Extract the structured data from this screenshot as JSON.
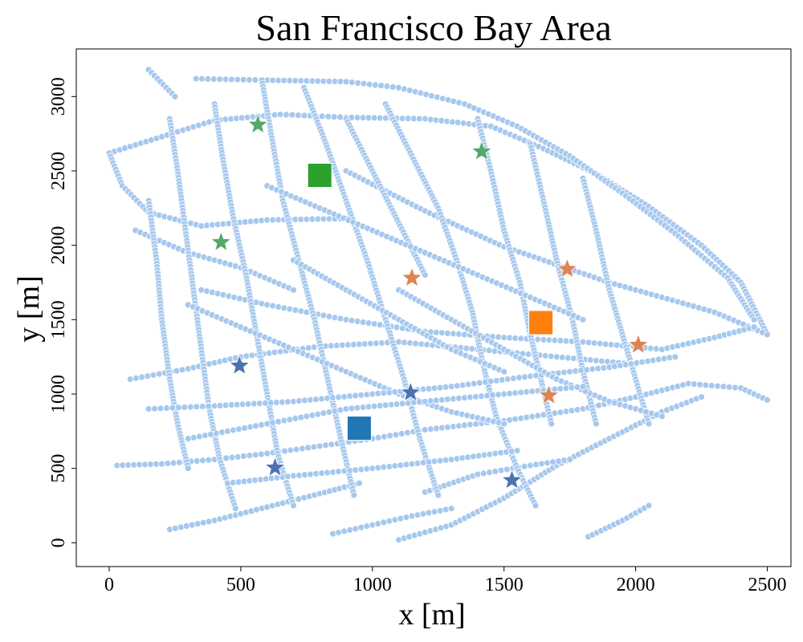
{
  "chart_data": {
    "type": "scatter",
    "title": "San Francisco Bay Area",
    "xlabel": "x [m]",
    "ylabel": "y [m]",
    "xlim": [
      -125,
      2590
    ],
    "ylim": [
      -160,
      3320
    ],
    "xticks": [
      0,
      500,
      1000,
      1500,
      2000,
      2500
    ],
    "yticks": [
      0,
      500,
      1000,
      1500,
      2000,
      2500,
      3000
    ],
    "grid": false,
    "colors": {
      "network": "#a6c8ee",
      "network_edge": "#ffffff",
      "blue": "#1f77b4",
      "orange": "#ff7f0e",
      "green": "#2ca02c",
      "star_blue": "#4c72b0",
      "star_orange": "#dd8452",
      "star_green": "#55a868"
    },
    "series": [
      {
        "marker": "square",
        "color": "#2ca02c",
        "points": [
          [
            800,
            2470
          ]
        ]
      },
      {
        "marker": "square",
        "color": "#ff7f0e",
        "points": [
          [
            1640,
            1480
          ]
        ]
      },
      {
        "marker": "square",
        "color": "#1f77b4",
        "points": [
          [
            950,
            770
          ]
        ]
      },
      {
        "marker": "star",
        "color": "#55a868",
        "points": [
          [
            565,
            2810
          ],
          [
            1415,
            2630
          ],
          [
            425,
            2020
          ]
        ]
      },
      {
        "marker": "star",
        "color": "#dd8452",
        "points": [
          [
            1150,
            1780
          ],
          [
            1740,
            1840
          ],
          [
            2010,
            1330
          ],
          [
            1670,
            990
          ]
        ]
      },
      {
        "marker": "star",
        "color": "#4c72b0",
        "points": [
          [
            495,
            1190
          ],
          [
            1145,
            1010
          ],
          [
            630,
            505
          ],
          [
            1530,
            420
          ]
        ]
      }
    ],
    "network_polylines": [
      [
        [
          0,
          2620
        ],
        [
          200,
          2730
        ],
        [
          400,
          2840
        ],
        [
          650,
          2880
        ],
        [
          900,
          2860
        ],
        [
          1200,
          2850
        ],
        [
          1450,
          2800
        ],
        [
          1650,
          2650
        ],
        [
          1850,
          2480
        ],
        [
          2050,
          2260
        ],
        [
          2250,
          2000
        ],
        [
          2400,
          1750
        ],
        [
          2500,
          1400
        ]
      ],
      [
        [
          150,
          3180
        ],
        [
          250,
          3000
        ]
      ],
      [
        [
          330,
          3120
        ],
        [
          600,
          3110
        ],
        [
          900,
          3100
        ],
        [
          1100,
          3060
        ],
        [
          1350,
          2950
        ],
        [
          1550,
          2800
        ],
        [
          1750,
          2600
        ],
        [
          1950,
          2350
        ],
        [
          2150,
          2080
        ],
        [
          2350,
          1780
        ],
        [
          2450,
          1500
        ]
      ],
      [
        [
          0,
          2620
        ],
        [
          50,
          2400
        ],
        [
          150,
          2220
        ],
        [
          350,
          2130
        ],
        [
          600,
          2170
        ],
        [
          900,
          2180
        ]
      ],
      [
        [
          100,
          2100
        ],
        [
          300,
          1950
        ],
        [
          500,
          1850
        ],
        [
          700,
          1700
        ]
      ],
      [
        [
          900,
          2500
        ],
        [
          1200,
          2230
        ],
        [
          1500,
          1990
        ],
        [
          1900,
          1750
        ],
        [
          2100,
          1650
        ],
        [
          2300,
          1550
        ],
        [
          2500,
          1400
        ]
      ],
      [
        [
          350,
          1700
        ],
        [
          600,
          1600
        ],
        [
          900,
          1500
        ],
        [
          1200,
          1420
        ],
        [
          1500,
          1380
        ],
        [
          1800,
          1350
        ],
        [
          2100,
          1300
        ],
        [
          2300,
          1380
        ],
        [
          2450,
          1450
        ]
      ],
      [
        [
          80,
          1100
        ],
        [
          300,
          1170
        ],
        [
          500,
          1250
        ],
        [
          800,
          1320
        ],
        [
          1100,
          1350
        ],
        [
          1400,
          1300
        ],
        [
          1700,
          1250
        ],
        [
          2000,
          1200
        ]
      ],
      [
        [
          30,
          520
        ],
        [
          200,
          530
        ],
        [
          400,
          560
        ],
        [
          600,
          600
        ],
        [
          800,
          650
        ],
        [
          1000,
          700
        ],
        [
          1200,
          760
        ],
        [
          1500,
          820
        ],
        [
          1800,
          900
        ],
        [
          2000,
          980
        ],
        [
          2200,
          1070
        ],
        [
          2400,
          1040
        ],
        [
          2500,
          960
        ]
      ],
      [
        [
          230,
          90
        ],
        [
          400,
          150
        ],
        [
          600,
          240
        ],
        [
          800,
          330
        ],
        [
          950,
          400
        ]
      ],
      [
        [
          1100,
          20
        ],
        [
          1300,
          120
        ],
        [
          1500,
          300
        ],
        [
          1700,
          520
        ],
        [
          1900,
          700
        ],
        [
          2100,
          880
        ],
        [
          2250,
          980
        ]
      ],
      [
        [
          850,
          60
        ],
        [
          1000,
          120
        ],
        [
          1150,
          180
        ],
        [
          1300,
          230
        ]
      ],
      [
        [
          1200,
          340
        ],
        [
          1400,
          460
        ],
        [
          1600,
          520
        ],
        [
          1750,
          560
        ]
      ],
      [
        [
          1820,
          40
        ],
        [
          1950,
          150
        ],
        [
          2050,
          250
        ]
      ],
      [
        [
          150,
          2300
        ],
        [
          180,
          1900
        ],
        [
          200,
          1500
        ],
        [
          230,
          1100
        ],
        [
          260,
          800
        ],
        [
          300,
          500
        ]
      ],
      [
        [
          230,
          2850
        ],
        [
          260,
          2500
        ],
        [
          290,
          2100
        ],
        [
          320,
          1700
        ],
        [
          350,
          1300
        ],
        [
          380,
          900
        ],
        [
          420,
          560
        ],
        [
          480,
          230
        ]
      ],
      [
        [
          400,
          2950
        ],
        [
          430,
          2600
        ],
        [
          470,
          2200
        ],
        [
          520,
          1800
        ],
        [
          560,
          1400
        ],
        [
          600,
          1000
        ],
        [
          640,
          600
        ],
        [
          700,
          250
        ]
      ],
      [
        [
          580,
          3110
        ],
        [
          620,
          2700
        ],
        [
          660,
          2300
        ],
        [
          720,
          1900
        ],
        [
          780,
          1500
        ],
        [
          830,
          1100
        ],
        [
          880,
          700
        ],
        [
          930,
          320
        ]
      ],
      [
        [
          740,
          3060
        ],
        [
          820,
          2700
        ],
        [
          900,
          2300
        ],
        [
          980,
          1900
        ],
        [
          1050,
          1500
        ],
        [
          1120,
          1100
        ],
        [
          1180,
          700
        ],
        [
          1250,
          320
        ]
      ],
      [
        [
          1050,
          2950
        ],
        [
          1150,
          2600
        ],
        [
          1250,
          2250
        ],
        [
          1320,
          1900
        ],
        [
          1380,
          1550
        ],
        [
          1420,
          1200
        ],
        [
          1470,
          850
        ],
        [
          1550,
          500
        ],
        [
          1620,
          250
        ]
      ],
      [
        [
          1400,
          2850
        ],
        [
          1450,
          2500
        ],
        [
          1500,
          2100
        ],
        [
          1560,
          1750
        ],
        [
          1600,
          1400
        ],
        [
          1640,
          1100
        ],
        [
          1680,
          800
        ]
      ],
      [
        [
          1600,
          2680
        ],
        [
          1650,
          2300
        ],
        [
          1700,
          1900
        ],
        [
          1760,
          1500
        ],
        [
          1800,
          1150
        ],
        [
          1850,
          800
        ]
      ],
      [
        [
          1800,
          2450
        ],
        [
          1850,
          2100
        ],
        [
          1900,
          1700
        ],
        [
          1950,
          1400
        ],
        [
          2000,
          1100
        ],
        [
          2050,
          800
        ]
      ],
      [
        [
          900,
          2850
        ],
        [
          1000,
          2500
        ],
        [
          1100,
          2150
        ],
        [
          1200,
          1800
        ]
      ],
      [
        [
          300,
          1600
        ],
        [
          500,
          1450
        ],
        [
          700,
          1300
        ],
        [
          900,
          1150
        ],
        [
          1100,
          1000
        ],
        [
          1300,
          880
        ],
        [
          1500,
          800
        ]
      ],
      [
        [
          150,
          900
        ],
        [
          400,
          920
        ],
        [
          700,
          950
        ],
        [
          1000,
          1000
        ],
        [
          1300,
          1050
        ],
        [
          1600,
          1120
        ],
        [
          1900,
          1180
        ],
        [
          2150,
          1250
        ]
      ],
      [
        [
          600,
          2400
        ],
        [
          800,
          2250
        ],
        [
          1000,
          2100
        ],
        [
          1200,
          1950
        ],
        [
          1400,
          1800
        ],
        [
          1600,
          1650
        ],
        [
          1800,
          1500
        ]
      ],
      [
        [
          1100,
          1700
        ],
        [
          1300,
          1500
        ],
        [
          1500,
          1300
        ],
        [
          1700,
          1100
        ],
        [
          1900,
          950
        ],
        [
          2100,
          850
        ]
      ],
      [
        [
          700,
          1900
        ],
        [
          900,
          1700
        ],
        [
          1100,
          1500
        ],
        [
          1300,
          1300
        ],
        [
          1500,
          1150
        ]
      ],
      [
        [
          300,
          700
        ],
        [
          600,
          800
        ],
        [
          900,
          900
        ],
        [
          1200,
          950
        ],
        [
          1500,
          1000
        ],
        [
          1800,
          1050
        ]
      ],
      [
        [
          450,
          400
        ],
        [
          700,
          450
        ],
        [
          1000,
          500
        ],
        [
          1300,
          560
        ],
        [
          1550,
          620
        ]
      ]
    ]
  }
}
